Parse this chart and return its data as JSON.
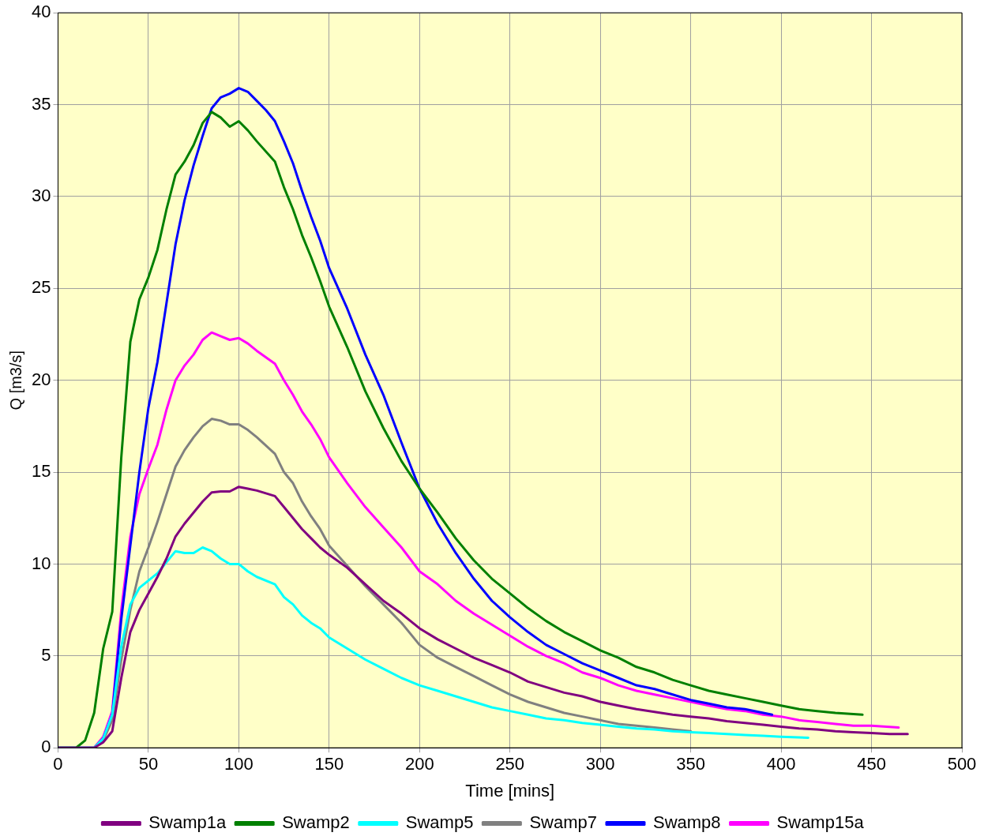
{
  "chart_data": {
    "type": "line",
    "xlabel": "Time [mins]",
    "ylabel": "Q [m3/s]",
    "xlim": [
      0,
      500
    ],
    "ylim": [
      0,
      40
    ],
    "xticks": [
      0,
      50,
      100,
      150,
      200,
      250,
      300,
      350,
      400,
      450,
      500
    ],
    "yticks": [
      0,
      5,
      10,
      15,
      20,
      25,
      30,
      35,
      40
    ],
    "grid": true,
    "legend": "bottom",
    "marker": "none",
    "line_style": "solid",
    "series": [
      {
        "name": "Swamp1a",
        "color": "#800080",
        "x": [
          0,
          20,
          25,
          30,
          35,
          40,
          45,
          50,
          55,
          60,
          65,
          70,
          75,
          80,
          85,
          90,
          95,
          100,
          105,
          110,
          120,
          125,
          130,
          135,
          140,
          145,
          150,
          160,
          170,
          180,
          190,
          200,
          210,
          220,
          230,
          240,
          250,
          260,
          270,
          280,
          290,
          300,
          310,
          320,
          330,
          340,
          350,
          360,
          370,
          380,
          390,
          400,
          410,
          420,
          430,
          440,
          450,
          460,
          470
        ],
        "values": [
          0,
          0,
          0.3,
          0.9,
          3.8,
          6.3,
          7.5,
          8.4,
          9.3,
          10.3,
          11.5,
          12.2,
          12.8,
          13.4,
          13.9,
          13.95,
          13.95,
          14.2,
          14.1,
          14,
          13.7,
          13.1,
          12.5,
          11.9,
          11.4,
          10.9,
          10.5,
          9.8,
          8.9,
          8,
          7.3,
          6.5,
          5.9,
          5.4,
          4.9,
          4.5,
          4.1,
          3.6,
          3.3,
          3,
          2.8,
          2.5,
          2.3,
          2.1,
          1.95,
          1.8,
          1.7,
          1.6,
          1.45,
          1.35,
          1.25,
          1.15,
          1.05,
          1,
          0.9,
          0.85,
          0.8,
          0.75,
          0.75
        ]
      },
      {
        "name": "Swamp2",
        "color": "#008000",
        "x": [
          0,
          10,
          15,
          20,
          25,
          30,
          35,
          40,
          45,
          50,
          55,
          60,
          65,
          70,
          75,
          80,
          85,
          90,
          95,
          100,
          105,
          110,
          120,
          125,
          130,
          135,
          140,
          145,
          150,
          160,
          170,
          180,
          190,
          200,
          210,
          220,
          230,
          240,
          250,
          260,
          270,
          280,
          290,
          300,
          310,
          320,
          330,
          340,
          350,
          360,
          370,
          380,
          390,
          400,
          410,
          420,
          430,
          445
        ],
        "values": [
          0,
          0,
          0.4,
          1.9,
          5.4,
          7.4,
          15.8,
          22.1,
          24.4,
          25.6,
          27.1,
          29.3,
          31.2,
          31.9,
          32.8,
          34,
          34.6,
          34.3,
          33.8,
          34.1,
          33.6,
          33,
          31.9,
          30.5,
          29.3,
          27.9,
          26.7,
          25.4,
          24,
          21.8,
          19.4,
          17.4,
          15.6,
          14.1,
          12.8,
          11.4,
          10.2,
          9.2,
          8.4,
          7.6,
          6.9,
          6.3,
          5.8,
          5.3,
          4.9,
          4.4,
          4.1,
          3.7,
          3.4,
          3.1,
          2.9,
          2.7,
          2.5,
          2.3,
          2.1,
          2,
          1.9,
          1.8
        ]
      },
      {
        "name": "Swamp5",
        "color": "#00ffff",
        "x": [
          0,
          20,
          25,
          30,
          35,
          40,
          45,
          50,
          55,
          60,
          65,
          70,
          75,
          80,
          85,
          90,
          95,
          100,
          105,
          110,
          120,
          125,
          130,
          135,
          140,
          145,
          150,
          160,
          170,
          180,
          190,
          200,
          210,
          220,
          230,
          240,
          250,
          260,
          270,
          280,
          290,
          300,
          310,
          320,
          330,
          340,
          350,
          360,
          370,
          380,
          390,
          400,
          415
        ],
        "values": [
          0,
          0,
          0.5,
          1.8,
          5.5,
          7.8,
          8.7,
          9.1,
          9.5,
          10.1,
          10.7,
          10.6,
          10.6,
          10.9,
          10.7,
          10.3,
          10,
          10,
          9.6,
          9.3,
          8.9,
          8.2,
          7.8,
          7.2,
          6.8,
          6.5,
          6,
          5.4,
          4.8,
          4.3,
          3.8,
          3.4,
          3.1,
          2.8,
          2.5,
          2.2,
          2,
          1.8,
          1.6,
          1.5,
          1.35,
          1.25,
          1.15,
          1.05,
          1,
          0.9,
          0.85,
          0.8,
          0.75,
          0.7,
          0.65,
          0.6,
          0.55
        ]
      },
      {
        "name": "Swamp7",
        "color": "#808080",
        "x": [
          0,
          20,
          25,
          30,
          35,
          40,
          45,
          50,
          55,
          60,
          65,
          70,
          75,
          80,
          85,
          90,
          95,
          100,
          105,
          110,
          120,
          125,
          130,
          135,
          140,
          145,
          150,
          160,
          170,
          180,
          190,
          200,
          210,
          220,
          230,
          240,
          250,
          260,
          270,
          280,
          290,
          300,
          310,
          320,
          330,
          340,
          350
        ],
        "values": [
          0,
          0,
          0.4,
          1.5,
          4.8,
          7.5,
          9.6,
          10.9,
          12.3,
          13.8,
          15.3,
          16.2,
          16.9,
          17.5,
          17.9,
          17.8,
          17.6,
          17.6,
          17.3,
          16.9,
          16,
          15,
          14.4,
          13.4,
          12.6,
          11.9,
          11,
          9.9,
          8.8,
          7.8,
          6.8,
          5.6,
          4.9,
          4.4,
          3.9,
          3.4,
          2.9,
          2.5,
          2.2,
          1.9,
          1.7,
          1.5,
          1.3,
          1.2,
          1.1,
          1,
          0.9
        ]
      },
      {
        "name": "Swamp8",
        "color": "#0000ff",
        "x": [
          0,
          20,
          25,
          30,
          35,
          40,
          45,
          50,
          55,
          60,
          65,
          70,
          75,
          80,
          85,
          90,
          95,
          100,
          105,
          110,
          115,
          120,
          125,
          130,
          135,
          140,
          145,
          150,
          160,
          170,
          180,
          190,
          200,
          210,
          220,
          230,
          240,
          250,
          260,
          270,
          280,
          290,
          300,
          310,
          320,
          330,
          340,
          350,
          360,
          370,
          380,
          395
        ],
        "values": [
          0,
          0,
          0.5,
          1.8,
          7,
          11,
          15,
          18.5,
          21,
          24.2,
          27.4,
          29.8,
          31.7,
          33.3,
          34.8,
          35.4,
          35.6,
          35.9,
          35.7,
          35.2,
          34.7,
          34.1,
          33,
          31.8,
          30.3,
          28.9,
          27.6,
          26.1,
          23.9,
          21.4,
          19.2,
          16.6,
          14.1,
          12.2,
          10.6,
          9.2,
          8,
          7.1,
          6.3,
          5.6,
          5.1,
          4.6,
          4.2,
          3.8,
          3.4,
          3.2,
          2.9,
          2.6,
          2.4,
          2.2,
          2.1,
          1.8
        ]
      },
      {
        "name": "Swamp15a",
        "color": "#ff00ff",
        "x": [
          0,
          20,
          25,
          30,
          35,
          40,
          45,
          50,
          55,
          60,
          65,
          70,
          75,
          80,
          85,
          90,
          95,
          100,
          105,
          110,
          120,
          125,
          130,
          135,
          140,
          145,
          150,
          160,
          170,
          180,
          190,
          200,
          210,
          220,
          230,
          240,
          250,
          260,
          270,
          280,
          290,
          300,
          310,
          320,
          330,
          340,
          350,
          360,
          370,
          380,
          390,
          400,
          410,
          420,
          430,
          440,
          450,
          465
        ],
        "values": [
          0,
          0,
          0.6,
          2,
          7.5,
          11.5,
          13.8,
          15.2,
          16.5,
          18.4,
          20,
          20.8,
          21.4,
          22.2,
          22.6,
          22.4,
          22.2,
          22.3,
          22,
          21.6,
          20.9,
          20,
          19.2,
          18.3,
          17.6,
          16.8,
          15.8,
          14.4,
          13.1,
          12,
          10.9,
          9.6,
          8.9,
          8,
          7.3,
          6.7,
          6.1,
          5.5,
          5,
          4.6,
          4.1,
          3.8,
          3.4,
          3.1,
          2.9,
          2.7,
          2.5,
          2.3,
          2.1,
          2,
          1.8,
          1.7,
          1.5,
          1.4,
          1.3,
          1.2,
          1.2,
          1.1
        ]
      }
    ]
  }
}
